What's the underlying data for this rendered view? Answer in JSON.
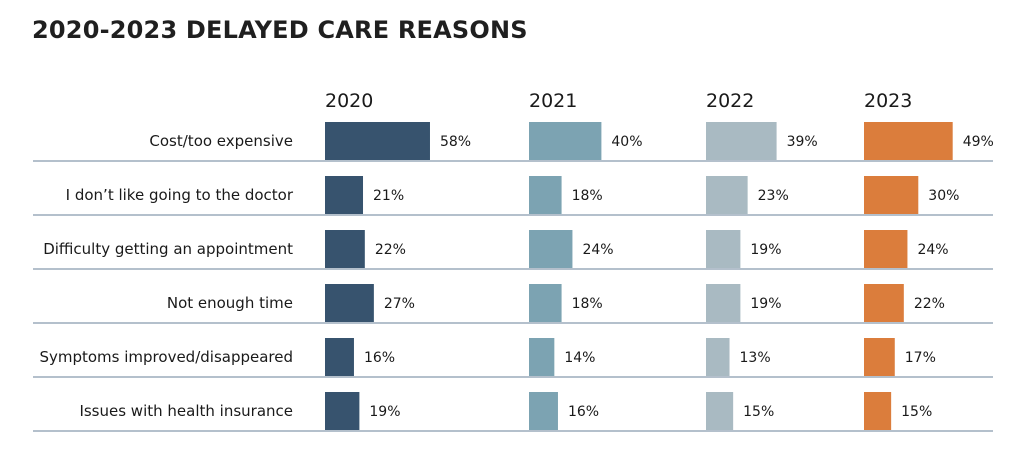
{
  "chart_data": {
    "type": "bar",
    "title": "2020-2023 DELAYED CARE REASONS",
    "unit": "%",
    "categories": [
      "Cost/too expensive",
      "I don’t like going to the doctor",
      "Difficulty getting an appointment",
      "Not enough time",
      "Symptoms improved/disappeared",
      "Issues with health insurance"
    ],
    "series": [
      {
        "name": "2020",
        "color": "#37536e",
        "values": [
          58,
          21,
          22,
          27,
          16,
          19
        ]
      },
      {
        "name": "2021",
        "color": "#7ca3b2",
        "values": [
          40,
          18,
          24,
          18,
          14,
          16
        ]
      },
      {
        "name": "2022",
        "color": "#a9bac2",
        "values": [
          39,
          23,
          19,
          19,
          13,
          15
        ]
      },
      {
        "name": "2023",
        "color": "#db7d3c",
        "values": [
          49,
          30,
          24,
          22,
          17,
          15
        ]
      }
    ],
    "divider_color": "#b4c0cc"
  }
}
